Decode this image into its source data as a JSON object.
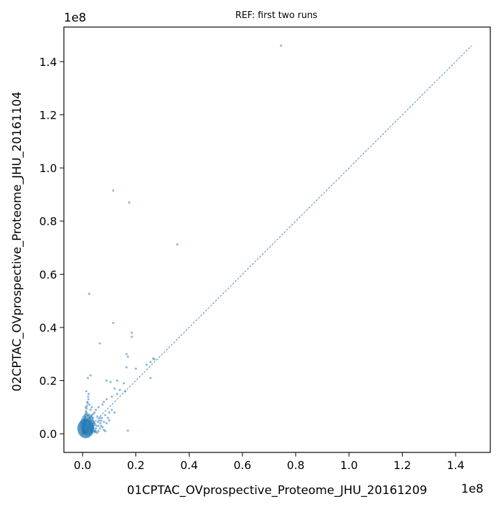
{
  "chart_data": {
    "type": "scatter",
    "title": "REF: first two runs",
    "xlabel": "01CPTAC_OVprospective_Proteome_JHU_20161209",
    "ylabel": "02CPTAC_OVprospective_Proteome_JHU_20161104",
    "x_offset_label": "1e8",
    "y_offset_label": "1e8",
    "xlim": [
      -0.07,
      1.53
    ],
    "ylim": [
      -0.07,
      1.53
    ],
    "x_ticks": [
      0.0,
      0.2,
      0.4,
      0.6,
      0.8,
      1.0,
      1.2,
      1.4
    ],
    "x_tick_labels": [
      "0.0",
      "0.2",
      "0.4",
      "0.6",
      "0.8",
      "1.0",
      "1.2",
      "1.4"
    ],
    "y_ticks": [
      0.0,
      0.2,
      0.4,
      0.6,
      0.8,
      1.0,
      1.2,
      1.4
    ],
    "y_tick_labels": [
      "0.0",
      "0.2",
      "0.4",
      "0.6",
      "0.8",
      "1.0",
      "1.2",
      "1.4"
    ],
    "grid": false,
    "point_color": "#1f77b4",
    "reference_line": {
      "style": "dashed",
      "color": "#1f77b4",
      "x": [
        0.0,
        1.46
      ],
      "y": [
        0.0,
        1.46
      ]
    },
    "series": [
      {
        "points": [
          [
            0.745,
            1.46
          ],
          [
            0.115,
            0.915
          ],
          [
            0.175,
            0.87
          ],
          [
            0.355,
            0.712
          ],
          [
            0.025,
            0.527
          ],
          [
            0.115,
            0.417
          ],
          [
            0.185,
            0.38
          ],
          [
            0.185,
            0.365
          ],
          [
            0.065,
            0.34
          ],
          [
            0.165,
            0.3
          ],
          [
            0.17,
            0.29
          ],
          [
            0.255,
            0.27
          ],
          [
            0.265,
            0.283
          ],
          [
            0.24,
            0.26
          ],
          [
            0.27,
            0.28
          ],
          [
            0.165,
            0.25
          ],
          [
            0.2,
            0.245
          ],
          [
            0.255,
            0.21
          ],
          [
            0.03,
            0.22
          ],
          [
            0.02,
            0.21
          ],
          [
            0.09,
            0.2
          ],
          [
            0.105,
            0.195
          ],
          [
            0.13,
            0.2
          ],
          [
            0.155,
            0.19
          ],
          [
            0.12,
            0.17
          ],
          [
            0.14,
            0.165
          ],
          [
            0.16,
            0.16
          ],
          [
            0.13,
            0.15
          ],
          [
            0.11,
            0.14
          ],
          [
            0.09,
            0.13
          ],
          [
            0.08,
            0.12
          ],
          [
            0.075,
            0.11
          ],
          [
            0.06,
            0.1
          ],
          [
            0.05,
            0.09
          ],
          [
            0.045,
            0.08
          ],
          [
            0.04,
            0.075
          ],
          [
            0.035,
            0.07
          ],
          [
            0.055,
            0.065
          ],
          [
            0.065,
            0.06
          ],
          [
            0.07,
            0.05
          ],
          [
            0.08,
            0.045
          ],
          [
            0.09,
            0.04
          ],
          [
            0.1,
            0.08
          ],
          [
            0.12,
            0.08
          ],
          [
            0.17,
            0.012
          ],
          [
            0.05,
            0.02
          ],
          [
            0.06,
            0.03
          ],
          [
            0.045,
            0.04
          ],
          [
            0.03,
            0.05
          ],
          [
            0.025,
            0.06
          ],
          [
            0.02,
            0.07
          ],
          [
            0.015,
            0.08
          ],
          [
            0.012,
            0.1
          ],
          [
            0.018,
            0.12
          ],
          [
            0.022,
            0.13
          ],
          [
            0.026,
            0.11
          ],
          [
            0.03,
            0.09
          ],
          [
            0.035,
            0.1
          ],
          [
            0.04,
            0.06
          ],
          [
            0.01,
            0.05
          ],
          [
            0.008,
            0.04
          ],
          [
            0.005,
            0.03
          ],
          [
            0.003,
            0.02
          ],
          [
            0.002,
            0.015
          ],
          [
            0.001,
            0.01
          ],
          [
            0.004,
            0.008
          ],
          [
            0.006,
            0.006
          ],
          [
            0.008,
            0.004
          ],
          [
            0.01,
            0.003
          ],
          [
            0.012,
            0.002
          ],
          [
            0.014,
            0.005
          ],
          [
            0.016,
            0.01
          ],
          [
            0.018,
            0.015
          ],
          [
            0.02,
            0.02
          ],
          [
            0.022,
            0.025
          ],
          [
            0.024,
            0.03
          ],
          [
            0.026,
            0.035
          ],
          [
            0.028,
            0.04
          ],
          [
            0.03,
            0.02
          ],
          [
            0.032,
            0.01
          ],
          [
            0.034,
            0.005
          ],
          [
            0.036,
            0.015
          ],
          [
            0.038,
            0.025
          ],
          [
            0.04,
            0.03
          ],
          [
            0.042,
            0.02
          ],
          [
            0.044,
            0.01
          ],
          [
            0.046,
            0.006
          ],
          [
            0.048,
            0.012
          ],
          [
            0.05,
            0.008
          ],
          [
            0.055,
            0.004
          ],
          [
            0.06,
            0.01
          ],
          [
            0.065,
            0.02
          ],
          [
            0.07,
            0.03
          ],
          [
            0.075,
            0.025
          ],
          [
            0.08,
            0.015
          ],
          [
            0.085,
            0.01
          ],
          [
            0.005,
            0.045
          ],
          [
            0.007,
            0.055
          ],
          [
            0.009,
            0.065
          ],
          [
            0.011,
            0.075
          ],
          [
            0.013,
            0.085
          ],
          [
            0.015,
            0.095
          ],
          [
            0.017,
            0.105
          ],
          [
            0.019,
            0.115
          ],
          [
            0.021,
            0.14
          ],
          [
            0.023,
            0.15
          ],
          [
            0.014,
            0.16
          ],
          [
            0.01,
            0.06
          ],
          [
            0.0,
            0.0
          ],
          [
            0.002,
            0.004
          ],
          [
            0.004,
            0.012
          ],
          [
            0.006,
            0.018
          ],
          [
            0.008,
            0.022
          ],
          [
            0.01,
            0.028
          ],
          [
            0.012,
            0.034
          ],
          [
            0.003,
            0.038
          ],
          [
            0.001,
            0.026
          ],
          [
            0.007,
            0.032
          ],
          [
            0.009,
            0.044
          ],
          [
            0.015,
            0.05
          ],
          [
            0.02,
            0.055
          ],
          [
            0.025,
            0.045
          ],
          [
            0.028,
            0.06
          ],
          [
            0.033,
            0.065
          ],
          [
            0.037,
            0.05
          ],
          [
            0.043,
            0.045
          ],
          [
            0.047,
            0.035
          ],
          [
            0.052,
            0.03
          ],
          [
            0.057,
            0.045
          ],
          [
            0.062,
            0.05
          ],
          [
            0.067,
            0.04
          ],
          [
            0.072,
            0.06
          ],
          [
            0.085,
            0.07
          ],
          [
            0.095,
            0.06
          ],
          [
            0.1,
            0.05
          ],
          [
            0.11,
            0.09
          ]
        ]
      }
    ]
  }
}
